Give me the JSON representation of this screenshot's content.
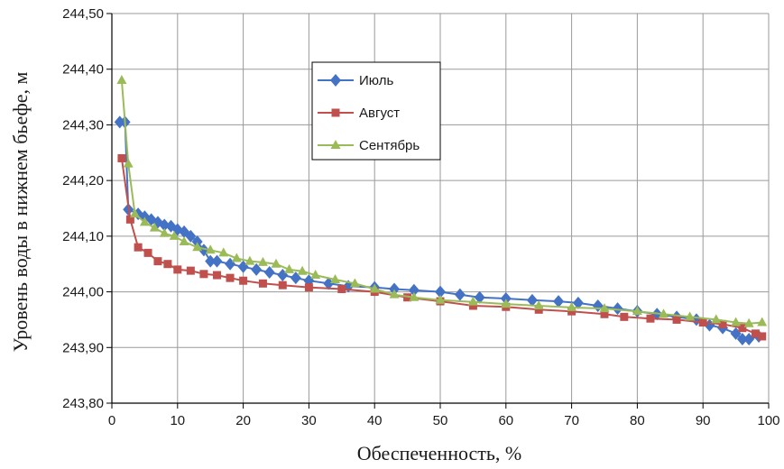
{
  "chart_data": {
    "type": "line",
    "xlabel": "Обеспеченность, %",
    "ylabel": "Уровень воды в нижнем бьефе, м",
    "xlim": [
      0,
      100
    ],
    "ylim": [
      243.8,
      244.5
    ],
    "xticks": [
      0,
      10,
      20,
      30,
      40,
      50,
      60,
      70,
      80,
      90,
      100
    ],
    "xtick_labels": [
      "0",
      "10",
      "20",
      "30",
      "40",
      "50",
      "60",
      "70",
      "80",
      "90",
      "100"
    ],
    "yticks": [
      243.8,
      243.9,
      244.0,
      244.1,
      244.2,
      244.3,
      244.4,
      244.5
    ],
    "ytick_labels": [
      "243,80",
      "243,90",
      "244,00",
      "244,10",
      "244,20",
      "244,30",
      "244,40",
      "244,50"
    ],
    "grid": true,
    "legend_position": "top-center",
    "series": [
      {
        "name": "Июль",
        "color": "#4472C4",
        "marker": "diamond",
        "points": [
          [
            1.2,
            244.305
          ],
          [
            2.0,
            244.305
          ],
          [
            2.5,
            244.148
          ],
          [
            4,
            244.14
          ],
          [
            5,
            244.135
          ],
          [
            6,
            244.13
          ],
          [
            7,
            244.125
          ],
          [
            8,
            244.12
          ],
          [
            9,
            244.118
          ],
          [
            10,
            244.112
          ],
          [
            11,
            244.108
          ],
          [
            12,
            244.1
          ],
          [
            13,
            244.09
          ],
          [
            14,
            244.075
          ],
          [
            15,
            244.055
          ],
          [
            16,
            244.055
          ],
          [
            18,
            244.05
          ],
          [
            20,
            244.045
          ],
          [
            22,
            244.04
          ],
          [
            24,
            244.035
          ],
          [
            26,
            244.03
          ],
          [
            28,
            244.025
          ],
          [
            30,
            244.02
          ],
          [
            33,
            244.015
          ],
          [
            36,
            244.01
          ],
          [
            40,
            244.008
          ],
          [
            43,
            244.005
          ],
          [
            46,
            244.003
          ],
          [
            50,
            244.0
          ],
          [
            53,
            243.995
          ],
          [
            56,
            243.99
          ],
          [
            60,
            243.988
          ],
          [
            64,
            243.985
          ],
          [
            68,
            243.983
          ],
          [
            71,
            243.98
          ],
          [
            74,
            243.975
          ],
          [
            77,
            243.97
          ],
          [
            80,
            243.965
          ],
          [
            83,
            243.96
          ],
          [
            86,
            243.955
          ],
          [
            89,
            243.95
          ],
          [
            91,
            243.94
          ],
          [
            93,
            243.935
          ],
          [
            95,
            243.925
          ],
          [
            96,
            243.915
          ],
          [
            97,
            243.915
          ],
          [
            98.5,
            243.92
          ]
        ]
      },
      {
        "name": "Август",
        "color": "#C0504D",
        "marker": "square",
        "points": [
          [
            1.5,
            244.24
          ],
          [
            2.8,
            244.13
          ],
          [
            4,
            244.08
          ],
          [
            5.5,
            244.07
          ],
          [
            7,
            244.055
          ],
          [
            8.5,
            244.05
          ],
          [
            10,
            244.04
          ],
          [
            12,
            244.038
          ],
          [
            14,
            244.032
          ],
          [
            16,
            244.03
          ],
          [
            18,
            244.025
          ],
          [
            20,
            244.02
          ],
          [
            23,
            244.015
          ],
          [
            26,
            244.012
          ],
          [
            30,
            244.008
          ],
          [
            35,
            244.005
          ],
          [
            40,
            244.0
          ],
          [
            45,
            243.99
          ],
          [
            50,
            243.983
          ],
          [
            55,
            243.975
          ],
          [
            60,
            243.973
          ],
          [
            65,
            243.968
          ],
          [
            70,
            243.965
          ],
          [
            75,
            243.96
          ],
          [
            78,
            243.955
          ],
          [
            82,
            243.952
          ],
          [
            86,
            243.95
          ],
          [
            90,
            243.945
          ],
          [
            93,
            243.942
          ],
          [
            96,
            243.935
          ],
          [
            98,
            243.925
          ],
          [
            99,
            243.92
          ]
        ]
      },
      {
        "name": "Сентябрь",
        "color": "#9BBB59",
        "marker": "triangle",
        "points": [
          [
            1.5,
            244.38
          ],
          [
            2.5,
            244.23
          ],
          [
            3.5,
            244.14
          ],
          [
            5,
            244.125
          ],
          [
            6.5,
            244.115
          ],
          [
            8,
            244.105
          ],
          [
            9.5,
            244.1
          ],
          [
            11,
            244.09
          ],
          [
            13,
            244.08
          ],
          [
            15,
            244.075
          ],
          [
            17,
            244.07
          ],
          [
            19,
            244.06
          ],
          [
            21,
            244.055
          ],
          [
            23,
            244.053
          ],
          [
            25,
            244.05
          ],
          [
            27,
            244.04
          ],
          [
            29,
            244.037
          ],
          [
            31,
            244.03
          ],
          [
            34,
            244.022
          ],
          [
            37,
            244.015
          ],
          [
            40,
            244.005
          ],
          [
            43,
            243.995
          ],
          [
            46,
            243.99
          ],
          [
            50,
            243.985
          ],
          [
            55,
            243.982
          ],
          [
            60,
            243.978
          ],
          [
            65,
            243.975
          ],
          [
            70,
            243.972
          ],
          [
            75,
            243.97
          ],
          [
            80,
            243.965
          ],
          [
            84,
            243.96
          ],
          [
            88,
            243.955
          ],
          [
            92,
            243.95
          ],
          [
            95,
            243.945
          ],
          [
            97,
            243.943
          ],
          [
            99,
            243.945
          ]
        ]
      }
    ]
  }
}
